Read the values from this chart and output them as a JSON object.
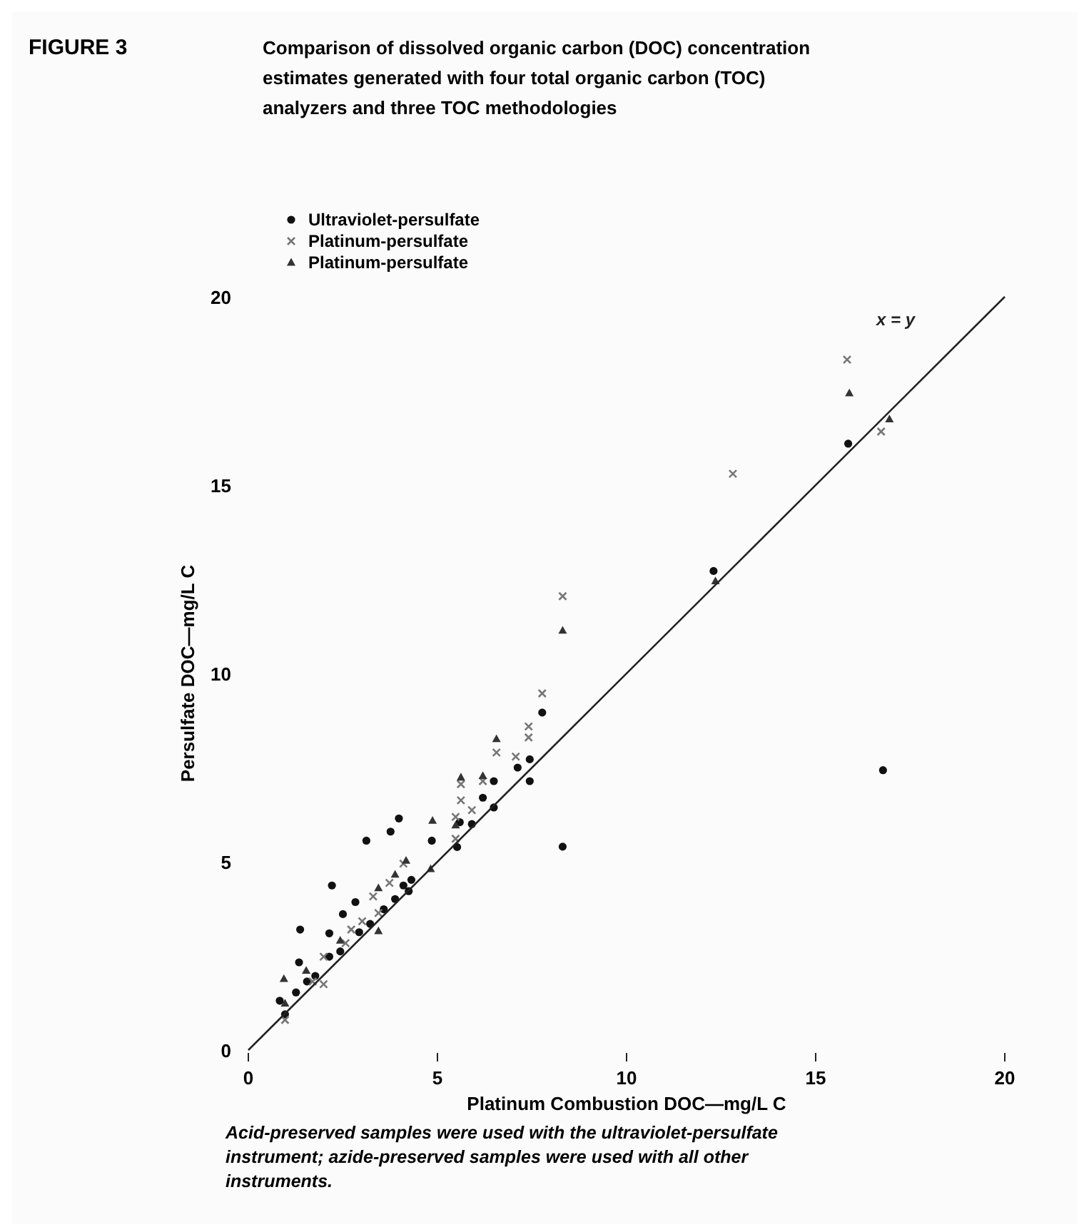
{
  "chart_data": {
    "type": "scatter",
    "title": "FIGURE 3",
    "subtitle": "Comparison of dissolved organic carbon (DOC) concentration estimates generated with four total organic carbon (TOC) analyzers and three TOC methodologies",
    "xlabel": "Platinum Combustion DOC—mg/L C",
    "ylabel": "Persulfate DOC—mg/L C",
    "xlim": [
      0,
      20
    ],
    "ylim": [
      0,
      20
    ],
    "xticks": [
      0,
      5,
      10,
      15,
      20
    ],
    "yticks": [
      0,
      5,
      10,
      15,
      20
    ],
    "grid": false,
    "legend": "top left",
    "annotations": [
      "Acid-preserved samples were used with the ultraviolet-persulfate instrument; azide-preserved samples were used with all other instruments."
    ],
    "series": [
      {
        "name": "Ultraviolet-persulfate",
        "color": "#111111",
        "marker": "circle",
        "x": [
          15.86,
          12.3,
          16.78,
          8.31,
          7.77,
          7.44,
          7.44,
          7.12,
          6.49,
          6.2,
          6.49,
          5.91,
          5.59,
          5.52,
          4.85,
          3.98,
          3.76,
          3.12,
          2.21,
          2.83,
          2.5,
          2.14,
          1.37,
          1.34,
          0.83,
          0.97,
          1.26,
          1.55,
          1.77,
          2.14,
          2.43,
          2.93,
          3.22,
          3.58,
          3.88,
          4.1,
          4.31,
          4.24
        ],
        "values": [
          16.1,
          12.72,
          7.43,
          5.4,
          8.96,
          7.14,
          7.72,
          7.5,
          7.14,
          6.7,
          6.44,
          6.0,
          6.05,
          5.39,
          5.56,
          6.15,
          5.8,
          5.56,
          4.37,
          3.93,
          3.61,
          3.1,
          3.2,
          2.33,
          1.31,
          0.95,
          1.53,
          1.82,
          1.97,
          2.48,
          2.62,
          3.13,
          3.35,
          3.74,
          4.01,
          4.37,
          4.52,
          4.22
        ]
      },
      {
        "name": "Platinum-persulfate",
        "color": "#777777",
        "marker": "cross",
        "x": [
          15.83,
          16.73,
          12.81,
          8.31,
          7.77,
          7.41,
          7.41,
          6.56,
          7.07,
          6.2,
          5.62,
          5.62,
          5.48,
          5.91,
          5.48,
          3.3,
          3.44,
          3.73,
          4.1,
          1.99,
          2.57,
          1.7,
          1.99,
          0.97,
          2.72,
          3.01
        ],
        "values": [
          18.33,
          16.42,
          15.3,
          12.05,
          9.47,
          8.3,
          8.59,
          7.9,
          7.79,
          7.14,
          7.06,
          6.63,
          6.19,
          6.37,
          5.61,
          4.08,
          3.64,
          4.44,
          4.95,
          2.48,
          2.84,
          1.82,
          1.75,
          0.8,
          3.2,
          3.42
        ]
      },
      {
        "name": "Platinum-persulfate",
        "color": "#333333",
        "marker": "triangle",
        "x": [
          15.89,
          8.31,
          6.56,
          6.2,
          5.62,
          4.87,
          5.48,
          4.82,
          3.44,
          4.17,
          0.94,
          0.97,
          1.53,
          2.43,
          3.44,
          3.88,
          12.35,
          16.95
        ],
        "values": [
          17.44,
          11.14,
          8.26,
          7.28,
          7.24,
          6.09,
          5.97,
          4.81,
          3.16,
          5.03,
          1.89,
          1.24,
          2.11,
          2.91,
          4.3,
          4.66,
          12.45,
          16.75
        ]
      },
      {
        "name": "x = y",
        "type": "line",
        "color": "#222222",
        "line_style": "solid",
        "x": [
          0,
          20
        ],
        "values": [
          0,
          20
        ]
      }
    ]
  }
}
